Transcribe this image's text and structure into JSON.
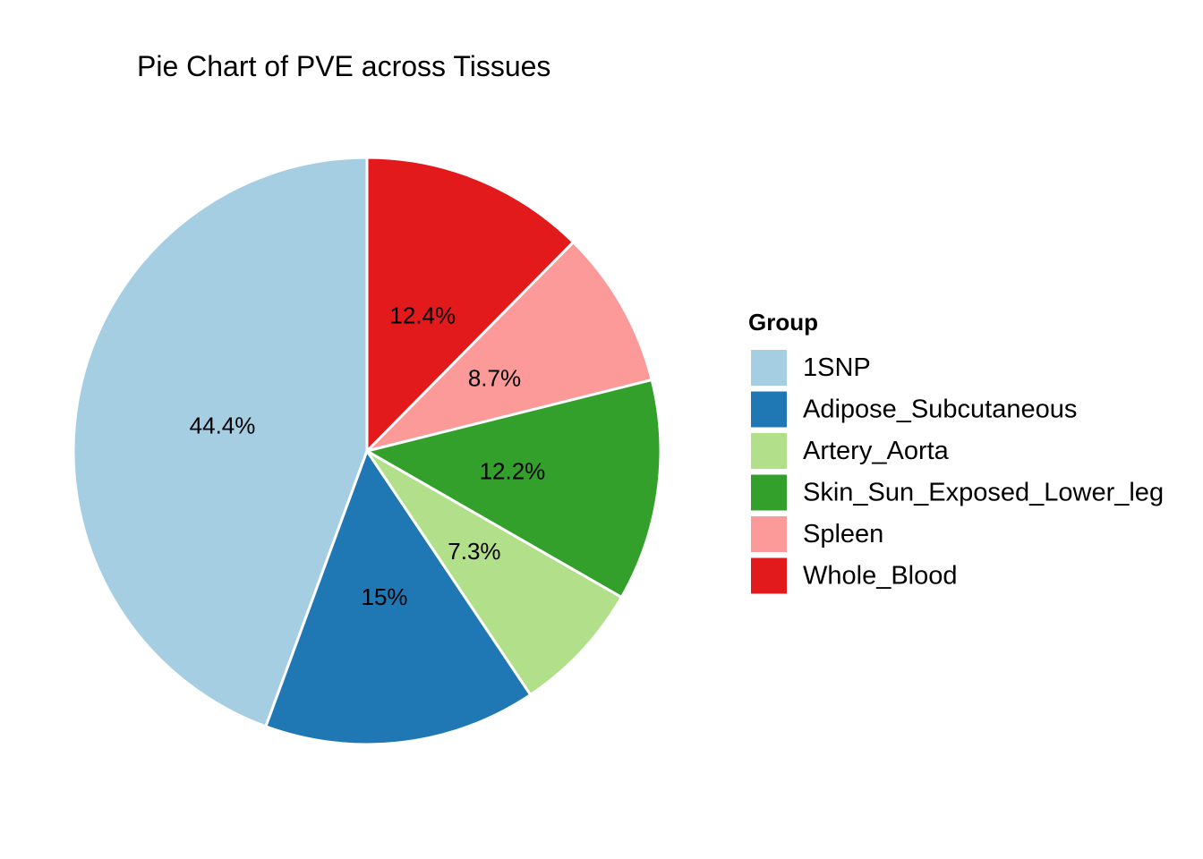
{
  "chart_data": {
    "type": "pie",
    "title": "Pie Chart of PVE across Tissues",
    "legend": {
      "title": "Group",
      "position": "right"
    },
    "start": "12 o'clock",
    "direction": "counterclockwise",
    "slices": [
      {
        "name": "1SNP",
        "value": 44.4,
        "label": "44.4%",
        "color": "#A6CEE3"
      },
      {
        "name": "Adipose_Subcutaneous",
        "value": 15.0,
        "label": "15%",
        "color": "#1F78B4"
      },
      {
        "name": "Artery_Aorta",
        "value": 7.3,
        "label": "7.3%",
        "color": "#B2DF8A"
      },
      {
        "name": "Skin_Sun_Exposed_Lower_leg",
        "value": 12.2,
        "label": "12.2%",
        "color": "#33A02C"
      },
      {
        "name": "Spleen",
        "value": 8.7,
        "label": "8.7%",
        "color": "#FB9A99"
      },
      {
        "name": "Whole_Blood",
        "value": 12.4,
        "label": "12.4%",
        "color": "#E31A1C"
      }
    ]
  }
}
